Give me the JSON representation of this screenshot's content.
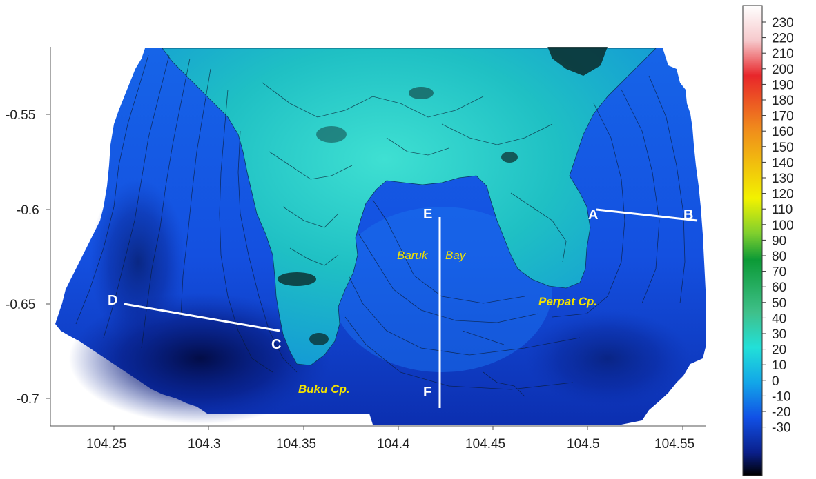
{
  "map": {
    "x_axis": {
      "ticks": [
        "104.25",
        "104.3",
        "104.35",
        "104.4",
        "104.45",
        "104.5",
        "104.55"
      ]
    },
    "y_axis": {
      "ticks": [
        "-0.55",
        "-0.6",
        "-0.65",
        "-0.7"
      ]
    },
    "colorbar": {
      "ticks": [
        "230",
        "220",
        "210",
        "200",
        "190",
        "180",
        "170",
        "160",
        "150",
        "140",
        "130",
        "120",
        "110",
        "100",
        "90",
        "80",
        "70",
        "60",
        "50",
        "40",
        "30",
        "20",
        "10",
        "0",
        "-10",
        "-20",
        "-30"
      ],
      "stops": [
        {
          "value": 235,
          "color": "#ffffff"
        },
        {
          "value": 215,
          "color": "#f6c9cc"
        },
        {
          "value": 195,
          "color": "#e8262a"
        },
        {
          "value": 165,
          "color": "#f08a1c"
        },
        {
          "value": 125,
          "color": "#f2f200"
        },
        {
          "value": 105,
          "color": "#7fcf2e"
        },
        {
          "value": 90,
          "color": "#0c9a36"
        },
        {
          "value": 60,
          "color": "#3fc08a"
        },
        {
          "value": 40,
          "color": "#22e0d8"
        },
        {
          "value": 20,
          "color": "#12a6e8"
        },
        {
          "value": 0,
          "color": "#1150e6"
        },
        {
          "value": -20,
          "color": "#0a1f8a"
        },
        {
          "value": -33,
          "color": "#000000"
        }
      ]
    },
    "profiles": [
      {
        "start": "A",
        "end": "B"
      },
      {
        "start": "C",
        "end": "D"
      },
      {
        "start": "E",
        "end": "F"
      }
    ],
    "place_names": {
      "baruk_1": "Baruk",
      "baruk_2": "Bay",
      "perpat": "Perpat Cp.",
      "buku": "Buku Cp."
    },
    "colors": {
      "deep_water": "#0a1f8a",
      "shallow_water": "#1150e6",
      "land_low": "#22c8c8",
      "label_yellow": "#f2e200"
    }
  }
}
